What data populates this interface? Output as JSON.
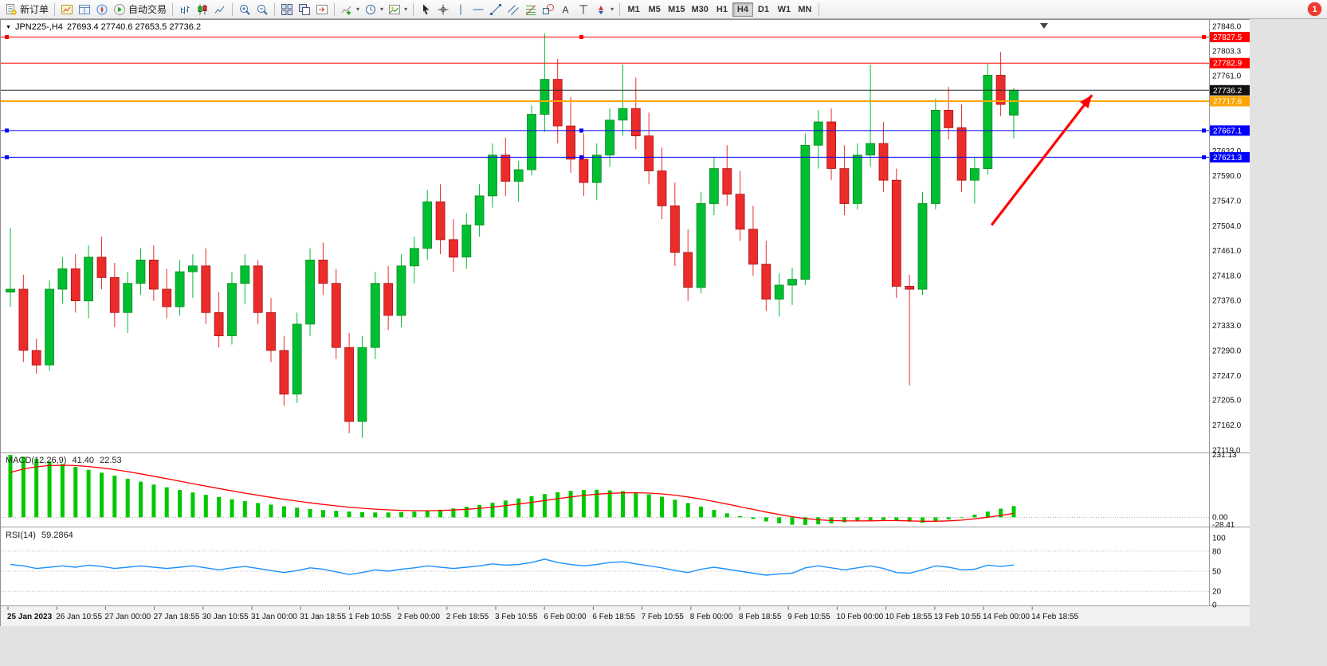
{
  "app": {
    "background": "#E2E2E2"
  },
  "toolbar": {
    "notification_badge": "1",
    "timeframes": [
      "M1",
      "M5",
      "M15",
      "M30",
      "H1",
      "H4",
      "D1",
      "W1",
      "MN"
    ],
    "active_timeframe": "H4",
    "groups": [
      {
        "items": [
          {
            "name": "new-order",
            "icon": "new-order",
            "label": "新订单"
          }
        ]
      },
      {
        "items": [
          {
            "name": "market-watch",
            "icon": "market-watch"
          },
          {
            "name": "data-window",
            "icon": "data-window"
          },
          {
            "name": "navigator",
            "icon": "navigator"
          },
          {
            "name": "autotrading",
            "icon": "autotrading",
            "label": "自动交易"
          }
        ]
      },
      {
        "items": [
          {
            "name": "bar-chart-mode",
            "icon": "bars"
          },
          {
            "name": "candlestick-mode",
            "icon": "candles"
          },
          {
            "name": "line-chart-mode",
            "icon": "linechart"
          }
        ]
      },
      {
        "items": [
          {
            "name": "zoom-in",
            "icon": "zoom-in"
          },
          {
            "name": "zoom-out",
            "icon": "zoom-out"
          }
        ]
      },
      {
        "items": [
          {
            "name": "tile-windows",
            "icon": "tile"
          },
          {
            "name": "cascade-windows",
            "icon": "arrange"
          },
          {
            "name": "chart-shift",
            "icon": "shift"
          }
        ]
      },
      {
        "items": [
          {
            "name": "indicators",
            "icon": "indicators",
            "caret": true
          },
          {
            "name": "periods",
            "icon": "clock",
            "caret": true
          },
          {
            "name": "templates",
            "icon": "template",
            "caret": true
          }
        ]
      },
      {
        "items": [
          {
            "name": "cursor-tool",
            "icon": "cursor"
          },
          {
            "name": "crosshair-tool",
            "icon": "crosshair"
          },
          {
            "name": "vertical-line-tool",
            "icon": "vline"
          },
          {
            "name": "horizontal-line-tool",
            "icon": "hline"
          },
          {
            "name": "trendline-tool",
            "icon": "trend"
          },
          {
            "name": "channel-tool",
            "icon": "channel"
          },
          {
            "name": "fibonacci-tool",
            "icon": "fib"
          },
          {
            "name": "shapes-tool",
            "icon": "shapes"
          },
          {
            "name": "text-tool",
            "icon": "text"
          },
          {
            "name": "label-tool",
            "icon": "label"
          },
          {
            "name": "arrows-tool",
            "icon": "arrows",
            "caret": true
          }
        ]
      }
    ]
  },
  "chart": {
    "menu_arrow": "▼",
    "title_symbol": "JPN225-,H4",
    "title_ohlc": "27693.4 27740.6 27653.5 27736.2"
  },
  "chart_data": {
    "type": "candlestick",
    "symbol": "JPN225-",
    "period": "H4",
    "current_bar": {
      "open": 27693.4,
      "high": 27740.6,
      "low": 27653.5,
      "close": 27736.2
    },
    "colors": {
      "up": "#00BE32",
      "up_border": "#0B8A20",
      "down": "#EC2B2B",
      "down_border": "#A81414",
      "rsi_line": "#1E90FF",
      "macd_histogram": "#00C800",
      "macd_signal": "#FF0000",
      "arrow": "#FF0000",
      "level_red": "#FF0000",
      "level_blue": "#0000FF",
      "level_orange": "#FFA500",
      "bid_black": "#2B2B2B"
    },
    "price_axis_ticks": [
      "27846.0",
      "27803.3",
      "27761.0",
      "27718.0",
      "27675.0",
      "27632.0",
      "27590.0",
      "27547.0",
      "27504.0",
      "27461.0",
      "27418.0",
      "27376.0",
      "27333.0",
      "27290.0",
      "27247.0",
      "27205.0",
      "27162.0",
      "27119.0"
    ],
    "time_axis_labels": [
      "25 Jan 2023",
      "26 Jan 10:55",
      "27 Jan 00:00",
      "27 Jan 18:55",
      "30 Jan 10:55",
      "31 Jan 00:00",
      "31 Jan 18:55",
      "1 Feb 10:55",
      "2 Feb 00:00",
      "2 Feb 18:55",
      "3 Feb 10:55",
      "6 Feb 00:00",
      "6 Feb 18:55",
      "7 Feb 10:55",
      "8 Feb 00:00",
      "8 Feb 18:55",
      "9 Feb 10:55",
      "10 Feb 00:00",
      "10 Feb 18:55",
      "13 Feb 10:55",
      "14 Feb 00:00",
      "14 Feb 18:55"
    ],
    "candles": [
      [
        27390,
        27500,
        27365,
        27395
      ],
      [
        27395,
        27420,
        27270,
        27290
      ],
      [
        27290,
        27310,
        27250,
        27265
      ],
      [
        27265,
        27410,
        27255,
        27395
      ],
      [
        27395,
        27450,
        27370,
        27430
      ],
      [
        27430,
        27455,
        27355,
        27375
      ],
      [
        27375,
        27470,
        27345,
        27450
      ],
      [
        27450,
        27485,
        27395,
        27415
      ],
      [
        27415,
        27440,
        27330,
        27355
      ],
      [
        27355,
        27425,
        27320,
        27405
      ],
      [
        27405,
        27465,
        27385,
        27445
      ],
      [
        27445,
        27470,
        27375,
        27395
      ],
      [
        27395,
        27430,
        27345,
        27365
      ],
      [
        27365,
        27445,
        27350,
        27425
      ],
      [
        27425,
        27455,
        27380,
        27435
      ],
      [
        27435,
        27465,
        27335,
        27355
      ],
      [
        27355,
        27390,
        27295,
        27315
      ],
      [
        27315,
        27425,
        27300,
        27405
      ],
      [
        27405,
        27455,
        27370,
        27435
      ],
      [
        27435,
        27445,
        27335,
        27355
      ],
      [
        27355,
        27380,
        27270,
        27290
      ],
      [
        27290,
        27315,
        27195,
        27215
      ],
      [
        27215,
        27355,
        27200,
        27335
      ],
      [
        27335,
        27465,
        27315,
        27445
      ],
      [
        27445,
        27475,
        27385,
        27405
      ],
      [
        27405,
        27430,
        27275,
        27295
      ],
      [
        27295,
        27320,
        27148,
        27168
      ],
      [
        27168,
        27315,
        27140,
        27295
      ],
      [
        27295,
        27425,
        27275,
        27405
      ],
      [
        27405,
        27435,
        27325,
        27350
      ],
      [
        27350,
        27455,
        27330,
        27435
      ],
      [
        27435,
        27485,
        27405,
        27465
      ],
      [
        27465,
        27565,
        27445,
        27545
      ],
      [
        27545,
        27575,
        27455,
        27480
      ],
      [
        27480,
        27515,
        27425,
        27450
      ],
      [
        27450,
        27525,
        27430,
        27505
      ],
      [
        27505,
        27575,
        27485,
        27555
      ],
      [
        27555,
        27645,
        27535,
        27625
      ],
      [
        27625,
        27655,
        27555,
        27580
      ],
      [
        27580,
        27615,
        27545,
        27600
      ],
      [
        27600,
        27710,
        27590,
        27695
      ],
      [
        27695,
        27834,
        27665,
        27755
      ],
      [
        27755,
        27790,
        27645,
        27675
      ],
      [
        27675,
        27725,
        27595,
        27618
      ],
      [
        27618,
        27662,
        27555,
        27578
      ],
      [
        27578,
        27645,
        27548,
        27625
      ],
      [
        27625,
        27705,
        27605,
        27685
      ],
      [
        27685,
        27780,
        27658,
        27705
      ],
      [
        27705,
        27758,
        27635,
        27658
      ],
      [
        27658,
        27698,
        27575,
        27598
      ],
      [
        27598,
        27638,
        27515,
        27538
      ],
      [
        27538,
        27578,
        27435,
        27458
      ],
      [
        27458,
        27498,
        27375,
        27398
      ],
      [
        27398,
        27562,
        27388,
        27542
      ],
      [
        27542,
        27622,
        27522,
        27602
      ],
      [
        27602,
        27642,
        27538,
        27558
      ],
      [
        27558,
        27598,
        27478,
        27498
      ],
      [
        27498,
        27538,
        27418,
        27438
      ],
      [
        27438,
        27478,
        27358,
        27378
      ],
      [
        27378,
        27422,
        27348,
        27402
      ],
      [
        27402,
        27432,
        27368,
        27412
      ],
      [
        27412,
        27662,
        27402,
        27642
      ],
      [
        27642,
        27702,
        27602,
        27682
      ],
      [
        27682,
        27705,
        27582,
        27602
      ],
      [
        27602,
        27642,
        27522,
        27542
      ],
      [
        27542,
        27645,
        27532,
        27625
      ],
      [
        27625,
        27780,
        27605,
        27645
      ],
      [
        27645,
        27682,
        27562,
        27582
      ],
      [
        27582,
        27602,
        27380,
        27400
      ],
      [
        27400,
        27420,
        27230,
        27395
      ],
      [
        27395,
        27562,
        27385,
        27542
      ],
      [
        27542,
        27722,
        27532,
        27702
      ],
      [
        27702,
        27742,
        27652,
        27672
      ],
      [
        27672,
        27712,
        27562,
        27582
      ],
      [
        27582,
        27622,
        27542,
        27602
      ],
      [
        27602,
        27782,
        27592,
        27762
      ],
      [
        27762,
        27802,
        27692,
        27712
      ],
      [
        27693.4,
        27740.6,
        27653.5,
        27736.2
      ]
    ],
    "hlines": [
      {
        "price": 27827.5,
        "label": "27827.5",
        "color": "#FF0000",
        "width": 1,
        "selected": true
      },
      {
        "price": 27782.9,
        "label": "27782.9",
        "color": "#FF0000",
        "width": 1,
        "selected": false
      },
      {
        "price": 27736.2,
        "label": "27736.2",
        "color": "#2B2B2B",
        "width": 1,
        "selected": false,
        "role": "bid-line"
      },
      {
        "price": 27717.6,
        "label": "27717.6",
        "color": "#FFA500",
        "width": 2,
        "selected": false
      },
      {
        "price": 27667.1,
        "label": "27667.1",
        "color": "#0000FF",
        "width": 1,
        "selected": true
      },
      {
        "price": 27621.3,
        "label": "27621.3",
        "color": "#0000FF",
        "width": 1,
        "selected": true
      }
    ],
    "trend_arrow": {
      "from": {
        "bar": 75.3,
        "price": 27505
      },
      "to": {
        "bar": 83,
        "price": 27728
      }
    },
    "macd": {
      "name": "MACD(12,26,9)",
      "value": "41.40",
      "signal_value": "22.53",
      "axis_labels": [
        "231.13",
        "0.00",
        "-28.41"
      ],
      "max": 231.13,
      "min": -28.41,
      "histogram": [
        231,
        224,
        216,
        207,
        197,
        187,
        176,
        165,
        154,
        143,
        132,
        121,
        111,
        101,
        92,
        83,
        75,
        67,
        60,
        53,
        47,
        41,
        36,
        31,
        27,
        24,
        21,
        19,
        18,
        18,
        19,
        21,
        24,
        28,
        33,
        39,
        46,
        54,
        62,
        70,
        78,
        86,
        93,
        98,
        101,
        102,
        100,
        97,
        92,
        85,
        76,
        65,
        53,
        40,
        27,
        15,
        4,
        -6,
        -15,
        -22,
        -27,
        -28,
        -26,
        -22,
        -18,
        -14,
        -11,
        -10,
        -12,
        -16,
        -20,
        -15,
        -8,
        0,
        10,
        21,
        32,
        41.4
      ]
    },
    "rsi": {
      "name": "RSI(14)",
      "value": "59.2864",
      "axis_labels": [
        "100",
        "80",
        "50",
        "20",
        "0"
      ],
      "levels": [
        80,
        50,
        20
      ],
      "range": [
        0,
        100
      ],
      "values": [
        60,
        58,
        54,
        56,
        58,
        56,
        59,
        57,
        54,
        56,
        58,
        56,
        54,
        56,
        58,
        55,
        52,
        55,
        57,
        54,
        51,
        48,
        51,
        55,
        53,
        49,
        45,
        48,
        52,
        50,
        53,
        55,
        58,
        56,
        54,
        56,
        58,
        61,
        59,
        60,
        63,
        68,
        63,
        60,
        58,
        60,
        63,
        64,
        61,
        58,
        55,
        51,
        48,
        53,
        56,
        53,
        50,
        47,
        44,
        46,
        47,
        55,
        58,
        55,
        52,
        55,
        58,
        54,
        48,
        47,
        52,
        58,
        56,
        52,
        53,
        59,
        57,
        59.29
      ]
    }
  }
}
